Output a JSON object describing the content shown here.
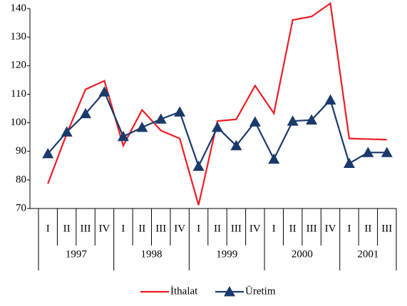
{
  "chart_data": {
    "type": "line",
    "groups": [
      {
        "name": "1997",
        "quarters": [
          "I",
          "II",
          "III",
          "IV"
        ]
      },
      {
        "name": "1998",
        "quarters": [
          "I",
          "II",
          "III",
          "IV"
        ]
      },
      {
        "name": "1999",
        "quarters": [
          "I",
          "II",
          "III",
          "IV"
        ]
      },
      {
        "name": "2000",
        "quarters": [
          "I",
          "II",
          "III",
          "IV"
        ]
      },
      {
        "name": "2001",
        "quarters": [
          "I",
          "II",
          "III"
        ]
      }
    ],
    "series": [
      {
        "name": "İthalat",
        "color": "#ee1c25",
        "marker": "none",
        "values": [
          78.7,
          96.2,
          111.7,
          114.7,
          92.0,
          104.5,
          97.3,
          94.5,
          71.2,
          100.6,
          101.2,
          113.0,
          103.3,
          136.0,
          137.2,
          141.8,
          94.5,
          94.3,
          94.1
        ]
      },
      {
        "name": "Üretim",
        "color": "#1a3a6b",
        "marker": "triangle",
        "values": [
          89.2,
          96.8,
          103.2,
          110.8,
          95.2,
          98.4,
          101.3,
          103.8,
          84.8,
          98.4,
          92.0,
          100.3,
          87.3,
          100.6,
          101.0,
          108.0,
          85.8,
          89.6,
          89.6
        ]
      }
    ],
    "ylim": [
      70,
      140
    ],
    "yticks": [
      70,
      80,
      90,
      100,
      110,
      120,
      130,
      140
    ],
    "legend": "bottom"
  }
}
